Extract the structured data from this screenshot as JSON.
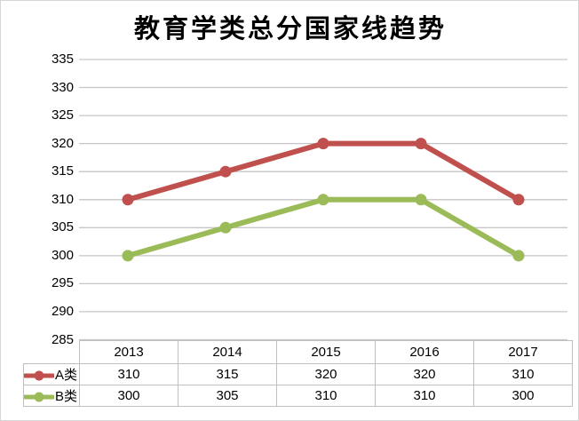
{
  "frame": {
    "background": "#ffffff",
    "border_color": "#d6d6d6"
  },
  "chart_data": {
    "type": "line",
    "title": "教育学类总分国家线趋势",
    "categories": [
      "2013",
      "2014",
      "2015",
      "2016",
      "2017"
    ],
    "series": [
      {
        "name": "A类",
        "color": "#C0504D",
        "values": [
          310,
          315,
          320,
          320,
          310
        ]
      },
      {
        "name": "B类",
        "color": "#9BBB59",
        "values": [
          300,
          305,
          310,
          310,
          300
        ]
      }
    ],
    "xlabel": "",
    "ylabel": "",
    "ylim": [
      285,
      335
    ],
    "yticks": [
      335,
      330,
      325,
      320,
      315,
      310,
      305,
      300,
      295,
      290,
      285
    ],
    "grid": "horizontal-only",
    "gridline_color": "#c6c6c6",
    "table_border_color": "#bfbfbf",
    "legend_position": "data-table-left",
    "marker": "circle",
    "line_width": 6
  }
}
